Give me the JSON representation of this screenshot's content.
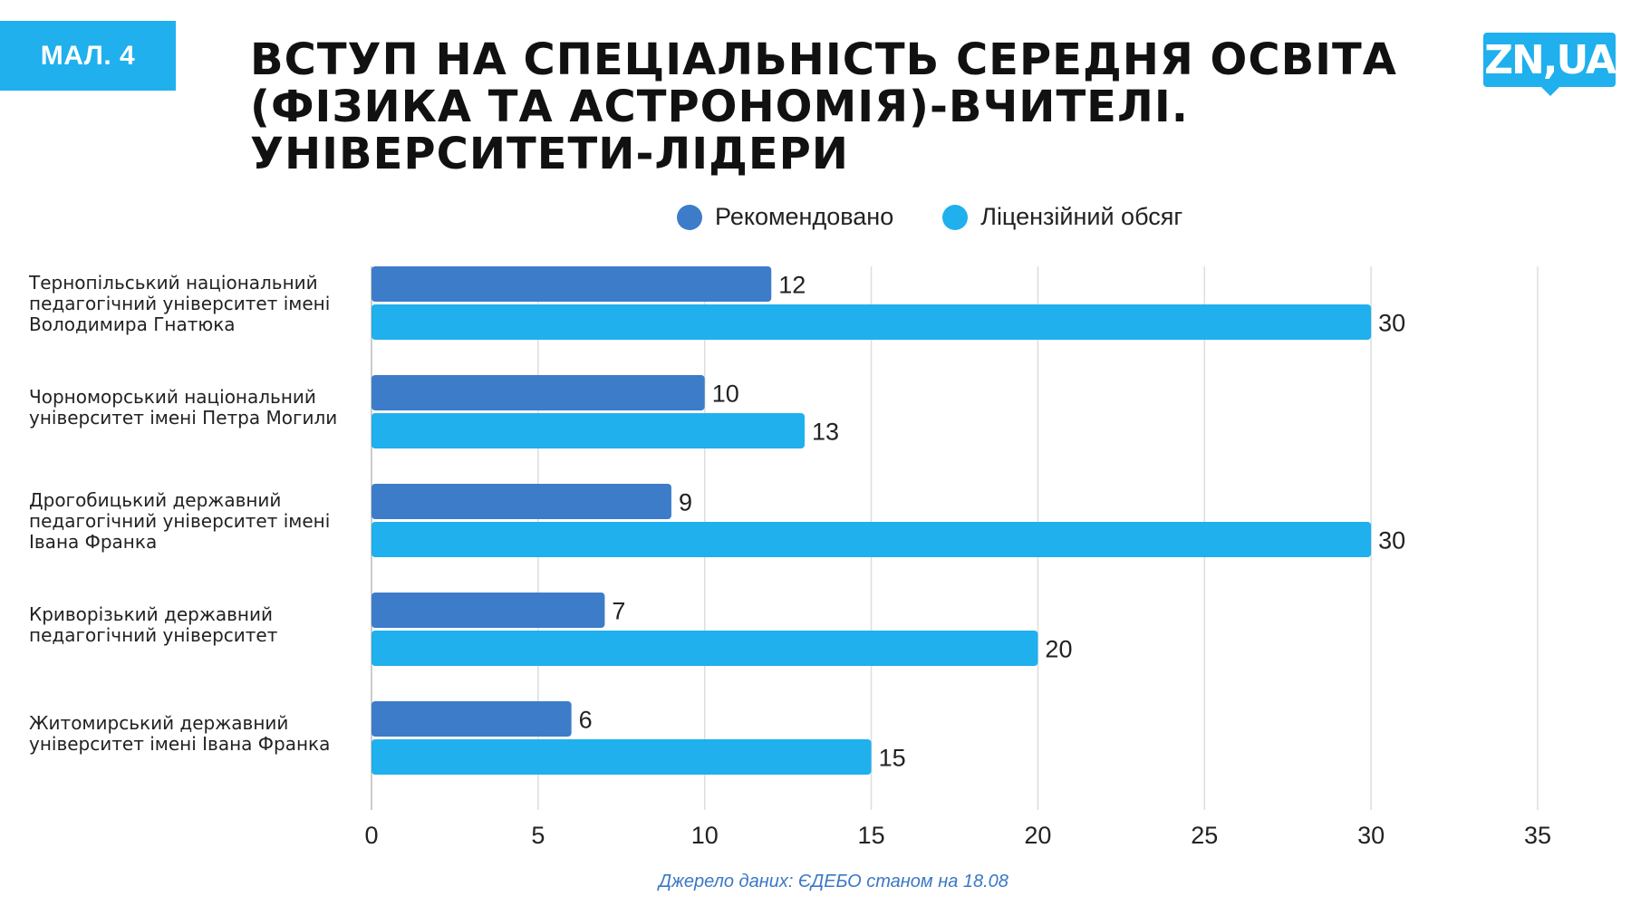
{
  "badge": "МАЛ. 4",
  "title_lines": [
    "ВСТУП НА СПЕЦІАЛЬНІСТЬ СЕРЕДНЯ ОСВІТА",
    "(ФІЗИКА ТА АСТРОНОМІЯ)-ВЧИТЕЛІ.",
    "УНІВЕРСИТЕТИ-ЛІДЕРИ"
  ],
  "logo": "ZN,UA",
  "source": "Джерело даних:  ЄДЕБО станом на 18.08",
  "colors": {
    "recommended": "#3d7cc9",
    "license": "#1fb0ed",
    "grid": "#dddddd",
    "accent": "#1fb0ed"
  },
  "chart_data": {
    "type": "bar",
    "orientation": "horizontal",
    "categories": [
      [
        "Тернопільський національний",
        "педагогічний університет імені",
        "Володимира Гнатюка"
      ],
      [
        "Чорноморський національний",
        "університет імені Петра Могили"
      ],
      [
        "Дрогобицький державний",
        "педагогічний університет імені",
        "Івана Франка"
      ],
      [
        "Криворізький державний",
        "педагогічний університет"
      ],
      [
        "Житомирський державний",
        "університет імені Івана Франка"
      ]
    ],
    "series": [
      {
        "name": "Рекомендовано",
        "values": [
          12,
          10,
          9,
          7,
          6
        ]
      },
      {
        "name": "Ліцензійний обсяг",
        "values": [
          30,
          13,
          30,
          20,
          15
        ]
      }
    ],
    "xlim": [
      0,
      35
    ],
    "xticks": [
      0,
      5,
      10,
      15,
      20,
      25,
      30,
      35
    ],
    "grid": true,
    "legend_position": "top"
  }
}
